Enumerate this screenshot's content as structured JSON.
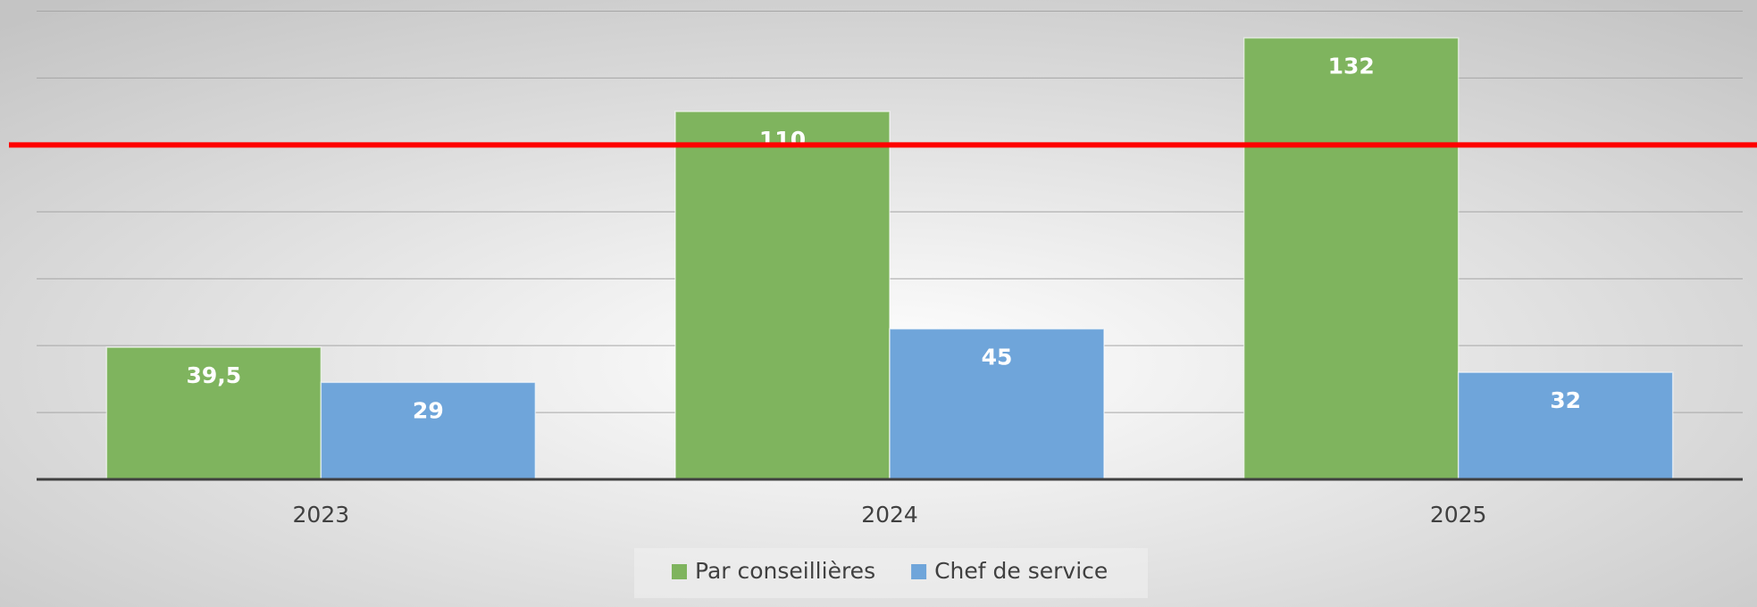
{
  "chart_data": {
    "type": "bar",
    "categories": [
      "2023",
      "2024",
      "2025"
    ],
    "series": [
      {
        "name": "Par conseillières",
        "color": "#7fb45e",
        "values": [
          39.5,
          110,
          132
        ],
        "value_labels": [
          "39,5",
          "110",
          "132"
        ]
      },
      {
        "name": "Chef de service",
        "color": "#6fa5da",
        "values": [
          29,
          45,
          32
        ],
        "value_labels": [
          "29",
          "45",
          "32"
        ]
      }
    ],
    "ylim": [
      0,
      140
    ],
    "yticks": [
      0,
      20,
      40,
      60,
      80,
      100,
      120,
      140
    ],
    "grid": true,
    "reference_line": {
      "value": 100,
      "color": "#ff0000"
    },
    "legend": "bottom"
  }
}
